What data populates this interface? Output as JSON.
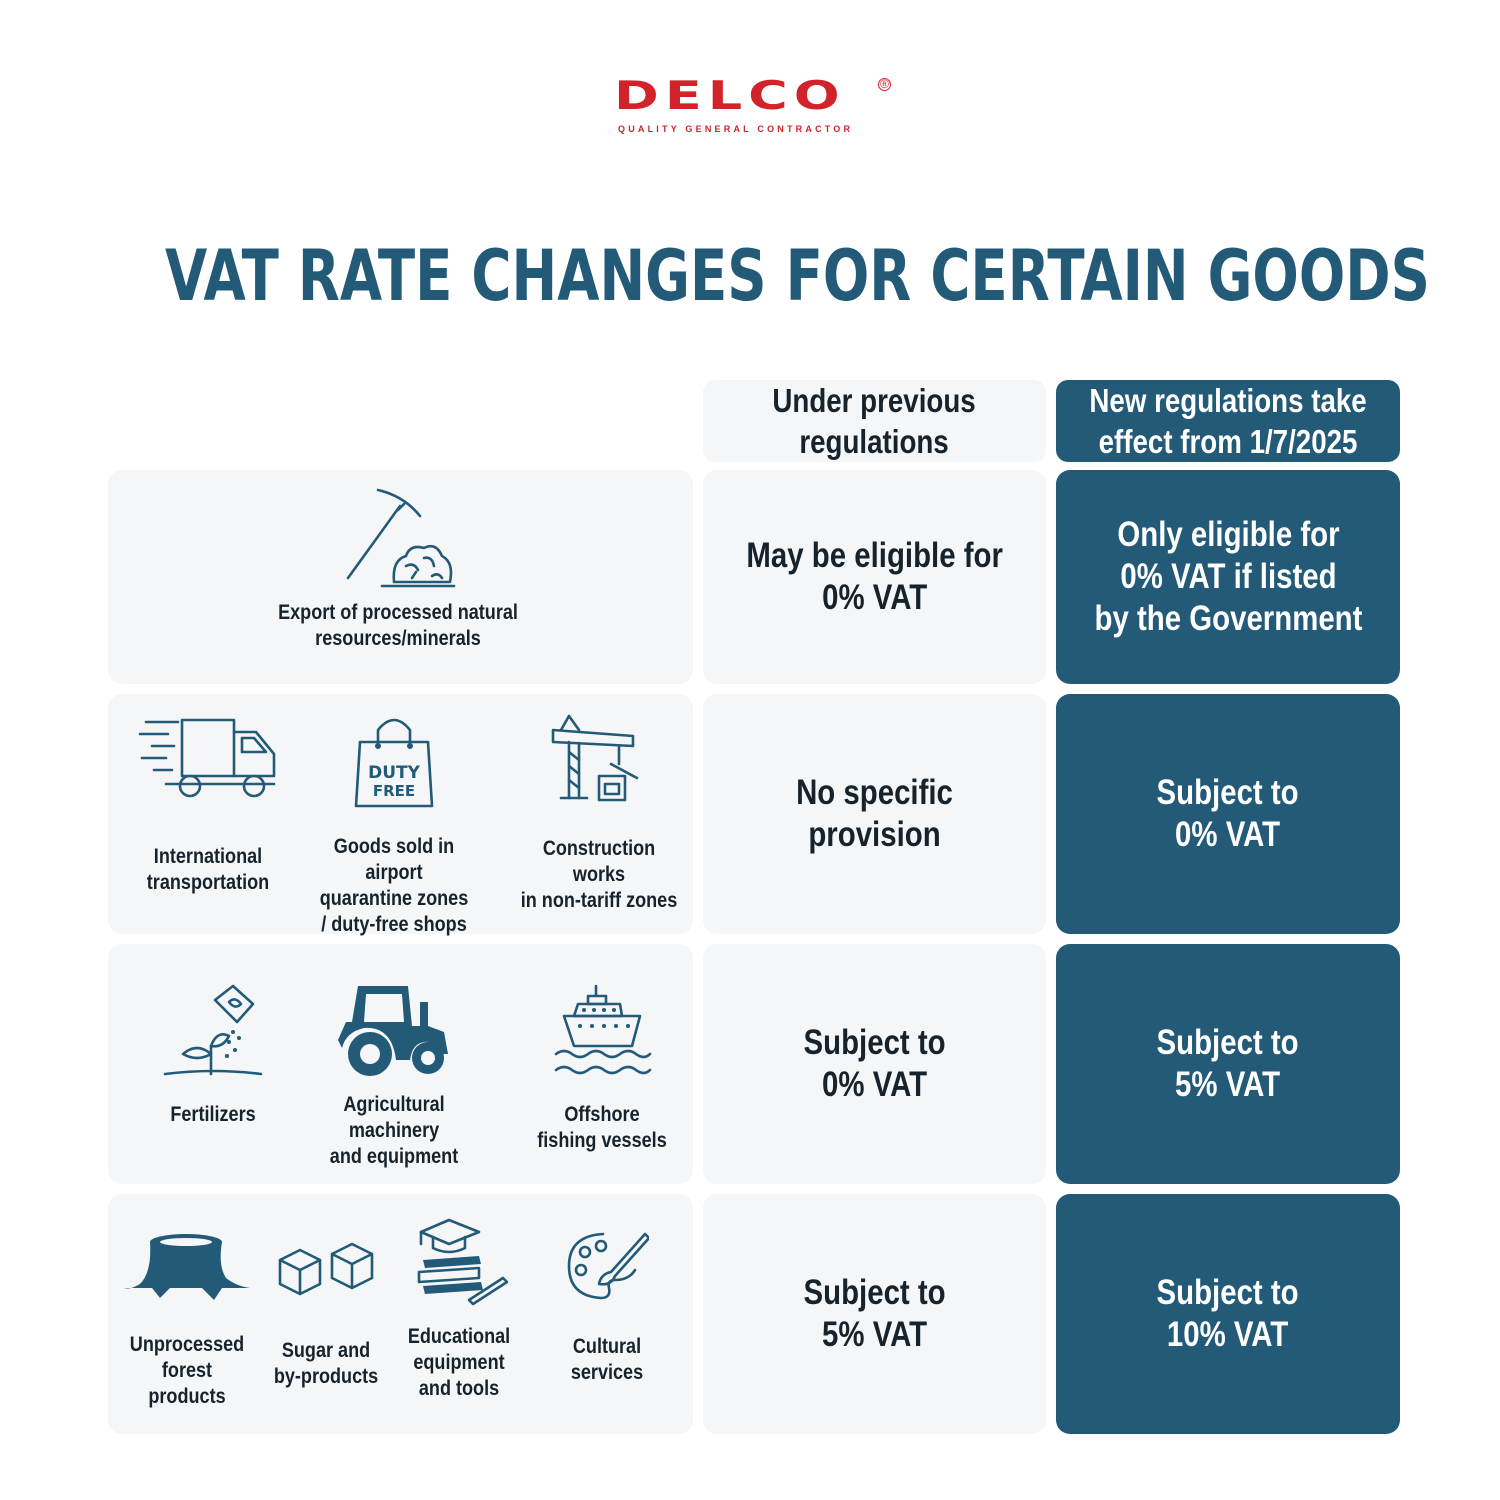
{
  "brand": {
    "name": "DELCO",
    "tagline": "QUALITY GENERAL CONTRACTOR",
    "color": "#d2232a"
  },
  "title": "VAT RATE CHANGES FOR CERTAIN GOODS",
  "headers": {
    "previous": "Under previous\nregulations",
    "new": "New regulations take\neffect from 1/7/2025"
  },
  "colors": {
    "accent": "#225a78",
    "panel": "#f4f6f8"
  },
  "rows": [
    {
      "goods": [
        {
          "label": "Export of processed natural\nresources/minerals",
          "icon": "pickaxe-minerals-icon"
        }
      ],
      "previous": "May be eligible for\n0% VAT",
      "new": "Only eligible for\n0% VAT if listed\nby the Government"
    },
    {
      "goods": [
        {
          "label": "International\ntransportation",
          "icon": "truck-icon"
        },
        {
          "label": "Goods sold in airport\nquarantine zones\n/ duty-free shops",
          "icon": "duty-free-bag-icon",
          "icon_text": "DUTY\nFREE"
        },
        {
          "label": "Construction works\nin non-tariff zones",
          "icon": "crane-icon"
        }
      ],
      "previous": "No specific provision",
      "new": "Subject to\n0% VAT"
    },
    {
      "goods": [
        {
          "label": "Fertilizers",
          "icon": "fertilizer-icon"
        },
        {
          "label": "Agricultural\nmachinery\nand equipment",
          "icon": "tractor-icon"
        },
        {
          "label": "Offshore\nfishing vessels",
          "icon": "ship-icon"
        }
      ],
      "previous": "Subject to\n0% VAT",
      "new": "Subject to\n5% VAT"
    },
    {
      "goods": [
        {
          "label": "Unprocessed\nforest products",
          "icon": "tree-stump-icon"
        },
        {
          "label": "Sugar and\nby-products",
          "icon": "sugar-cubes-icon"
        },
        {
          "label": "Educational\nequipment\nand tools",
          "icon": "books-cap-icon"
        },
        {
          "label": "Cultural\nservices",
          "icon": "palette-icon"
        }
      ],
      "previous": "Subject to\n5% VAT",
      "new": "Subject to\n10% VAT"
    }
  ]
}
